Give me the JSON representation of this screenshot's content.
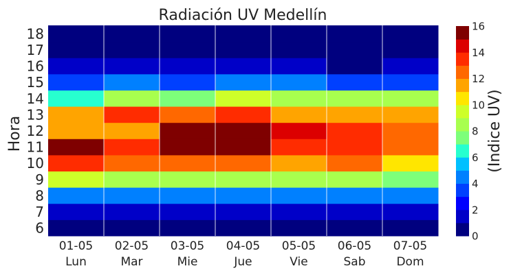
{
  "chart_data": {
    "type": "heatmap",
    "title": "Radiación UV Medellín",
    "ylabel": "Hora",
    "colorbar_label": "(Indice UV)",
    "x_categories": [
      {
        "date": "01-05",
        "day": "Lun"
      },
      {
        "date": "02-05",
        "day": "Mar"
      },
      {
        "date": "03-05",
        "day": "Mie"
      },
      {
        "date": "04-05",
        "day": "Jue"
      },
      {
        "date": "05-05",
        "day": "Vie"
      },
      {
        "date": "06-05",
        "day": "Sab"
      },
      {
        "date": "07-05",
        "day": "Dom"
      }
    ],
    "y_hours": [
      "6",
      "7",
      "8",
      "9",
      "10",
      "11",
      "12",
      "13",
      "14",
      "15",
      "16",
      "17",
      "18"
    ],
    "values": [
      [
        0,
        0,
        0,
        0,
        0,
        0,
        0
      ],
      [
        1,
        1,
        1,
        1,
        1,
        1,
        1
      ],
      [
        4,
        4,
        4,
        4,
        4,
        4,
        4
      ],
      [
        9,
        8,
        8,
        8,
        8,
        8,
        7
      ],
      [
        13,
        12,
        12,
        12,
        11,
        12,
        10
      ],
      [
        15.5,
        13,
        15.5,
        15.5,
        13,
        13,
        12
      ],
      [
        11,
        11,
        15.5,
        15.5,
        14.5,
        13,
        12
      ],
      [
        11,
        13,
        12,
        13,
        11,
        11,
        11
      ],
      [
        6,
        8,
        7,
        9,
        8,
        8,
        8
      ],
      [
        3,
        4,
        3,
        4,
        4,
        3,
        3
      ],
      [
        1,
        1,
        1,
        1,
        1,
        0,
        1
      ],
      [
        0,
        0,
        0,
        0,
        0,
        0,
        0
      ],
      [
        0,
        0,
        0,
        0,
        0,
        0,
        0
      ]
    ],
    "colorbar_ticks": [
      "0",
      "2",
      "4",
      "6",
      "8",
      "10",
      "12",
      "14",
      "16"
    ],
    "vmin": 0,
    "vmax": 16,
    "colormap": [
      "#00007f",
      "#0000c8",
      "#0000ff",
      "#0040ff",
      "#0080ff",
      "#00c0ff",
      "#27ffcf",
      "#7dff7a",
      "#a8ff4e",
      "#ceff29",
      "#ffe600",
      "#ffa400",
      "#ff6800",
      "#ff2c00",
      "#dc0000",
      "#7f0000"
    ],
    "grid": true
  }
}
